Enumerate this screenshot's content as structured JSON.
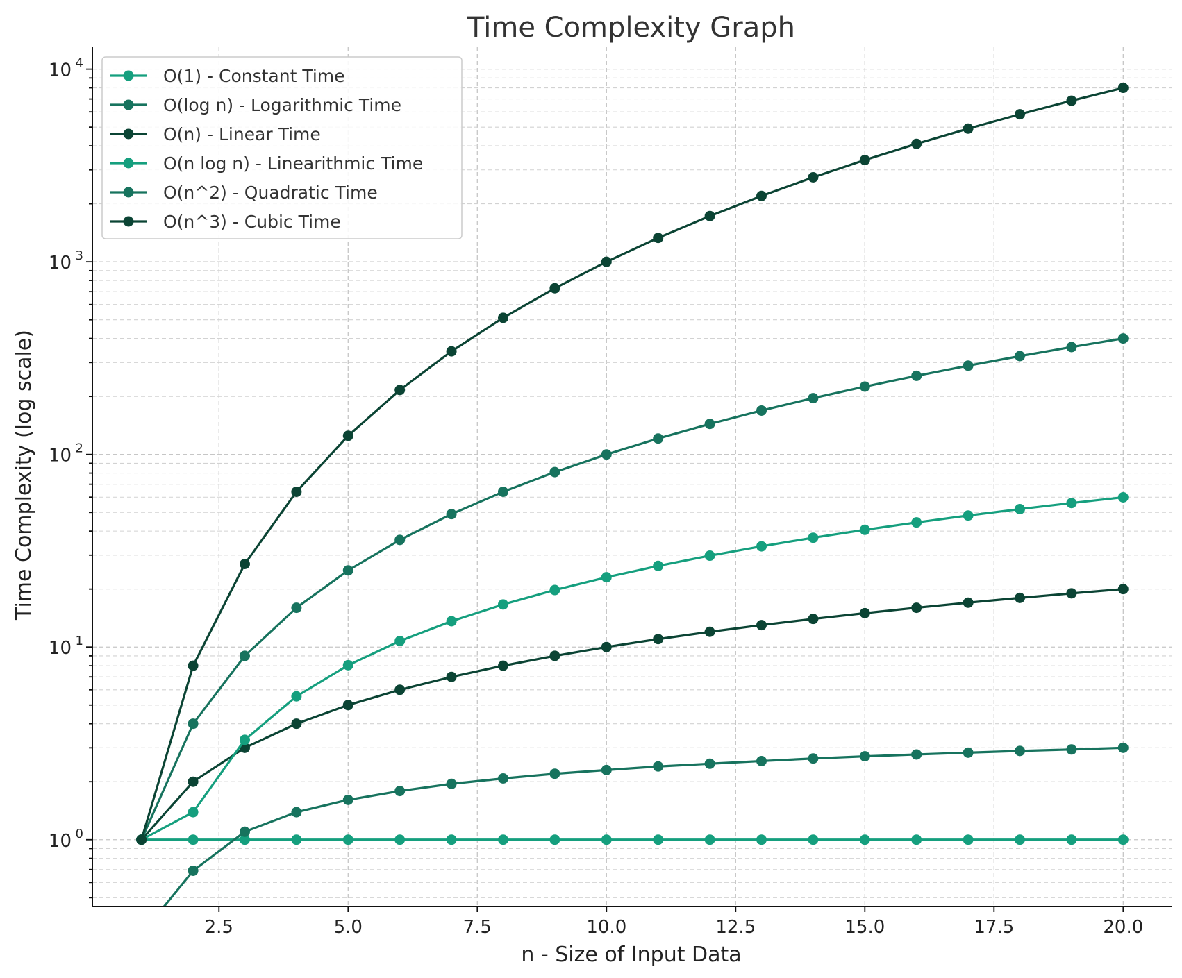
{
  "chart_data": {
    "type": "line",
    "title": "Time Complexity Graph",
    "xlabel": "n - Size of Input Data",
    "ylabel": "Time Complexity (log scale)",
    "yscale": "log",
    "xlim": [
      0.05,
      20.95
    ],
    "ylim": [
      0.45,
      13000
    ],
    "grid": true,
    "legend_position": "upper-left",
    "x_ticks": [
      2.5,
      5.0,
      7.5,
      10.0,
      12.5,
      15.0,
      17.5,
      20.0
    ],
    "x_tick_labels": [
      "2.5",
      "5.0",
      "7.5",
      "10.0",
      "12.5",
      "15.0",
      "17.5",
      "20.0"
    ],
    "y_ticks": [
      1,
      10,
      100,
      1000,
      10000
    ],
    "y_tick_labels": [
      {
        "base": "10",
        "exp": "0"
      },
      {
        "base": "10",
        "exp": "1"
      },
      {
        "base": "10",
        "exp": "2"
      },
      {
        "base": "10",
        "exp": "3"
      },
      {
        "base": "10",
        "exp": "4"
      }
    ],
    "x": [
      1,
      2,
      3,
      4,
      5,
      6,
      7,
      8,
      9,
      10,
      11,
      12,
      13,
      14,
      15,
      16,
      17,
      18,
      19,
      20
    ],
    "series": [
      {
        "name": "O(1) - Constant Time",
        "color": "#159f7e",
        "values": [
          1,
          1,
          1,
          1,
          1,
          1,
          1,
          1,
          1,
          1,
          1,
          1,
          1,
          1,
          1,
          1,
          1,
          1,
          1,
          1
        ]
      },
      {
        "name": "O(log n) - Logarithmic Time",
        "color": "#17735e",
        "values": [
          0,
          0.69,
          1.1,
          1.39,
          1.61,
          1.79,
          1.95,
          2.08,
          2.2,
          2.3,
          2.4,
          2.48,
          2.56,
          2.64,
          2.71,
          2.77,
          2.83,
          2.89,
          2.94,
          3.0
        ]
      },
      {
        "name": "O(n) - Linear Time",
        "color": "#0b4434",
        "values": [
          1,
          2,
          3,
          4,
          5,
          6,
          7,
          8,
          9,
          10,
          11,
          12,
          13,
          14,
          15,
          16,
          17,
          18,
          19,
          20
        ]
      },
      {
        "name": "O(n log n) - Linearithmic Time",
        "color": "#159f7e",
        "values": [
          1,
          1.39,
          3.3,
          5.55,
          8.05,
          10.75,
          13.62,
          16.64,
          19.78,
          23.03,
          26.38,
          29.82,
          33.34,
          36.95,
          40.62,
          44.36,
          48.16,
          52.03,
          55.94,
          59.91
        ]
      },
      {
        "name": "O(n^2) - Quadratic Time",
        "color": "#17735e",
        "values": [
          1,
          4,
          9,
          16,
          25,
          36,
          49,
          64,
          81,
          100,
          121,
          144,
          169,
          196,
          225,
          256,
          289,
          324,
          361,
          400
        ]
      },
      {
        "name": "O(n^3) - Cubic Time",
        "color": "#0b4434",
        "values": [
          1,
          8,
          27,
          64,
          125,
          216,
          343,
          512,
          729,
          1000,
          1331,
          1728,
          2197,
          2744,
          3375,
          4096,
          4913,
          5832,
          6859,
          8000
        ]
      }
    ]
  }
}
